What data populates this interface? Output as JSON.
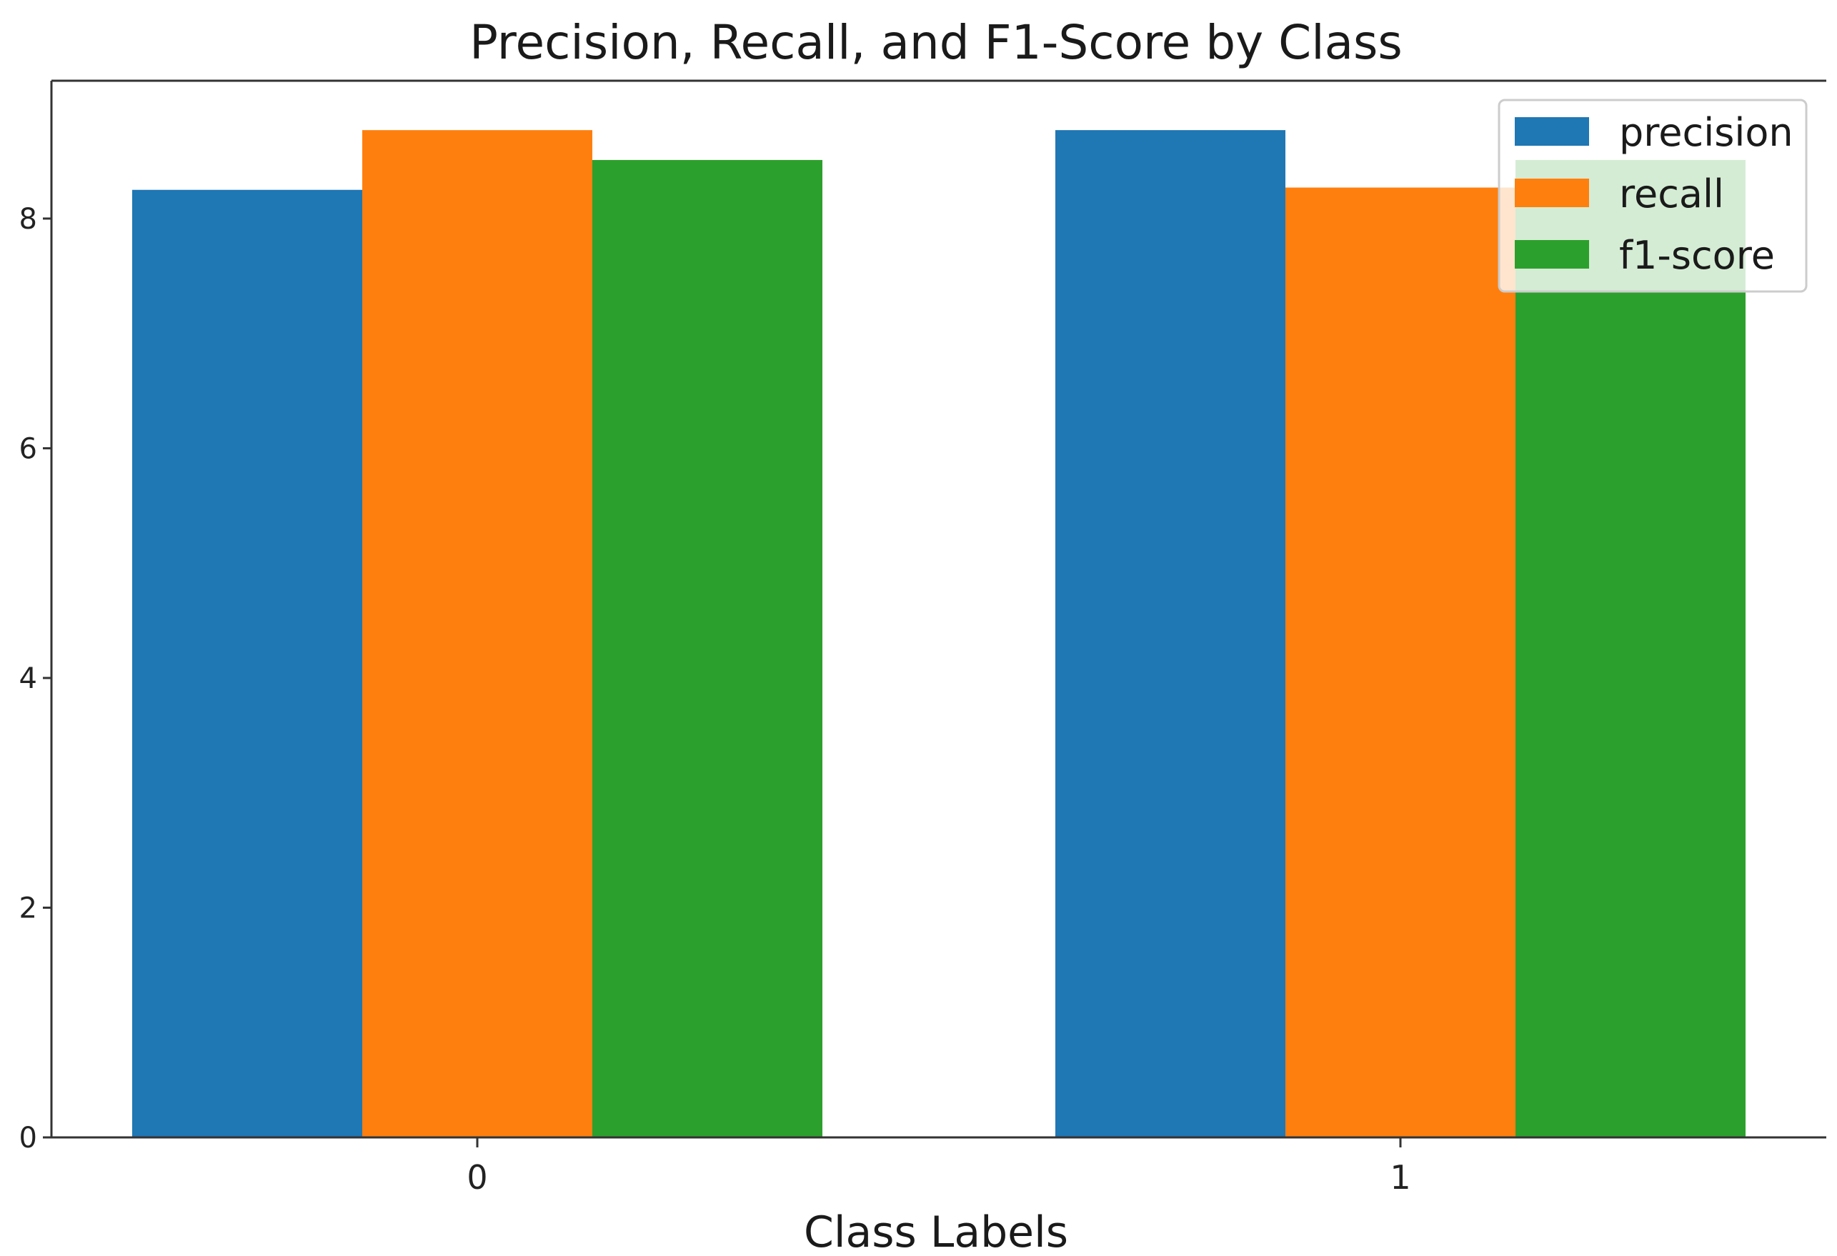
{
  "chart_data": {
    "type": "bar",
    "title": "Precision, Recall, and F1-Score by Class",
    "xlabel": "Class Labels",
    "ylabel": "",
    "categories": [
      "0",
      "1"
    ],
    "series": [
      {
        "name": "precision",
        "color": "#1f77b4",
        "values": [
          0.825,
          0.877
        ]
      },
      {
        "name": "recall",
        "color": "#ff7f0e",
        "values": [
          0.877,
          0.827
        ]
      },
      {
        "name": "f1-score",
        "color": "#2ca02c",
        "values": [
          0.851,
          0.851
        ]
      }
    ],
    "ylim": [
      0,
      0.92
    ],
    "yticks": [
      0,
      0.2,
      0.4,
      0.6,
      0.8
    ],
    "ytick_labels": [
      "0",
      "2",
      "4",
      "6",
      "8"
    ],
    "legend_position": "top-right",
    "grid": false
  }
}
